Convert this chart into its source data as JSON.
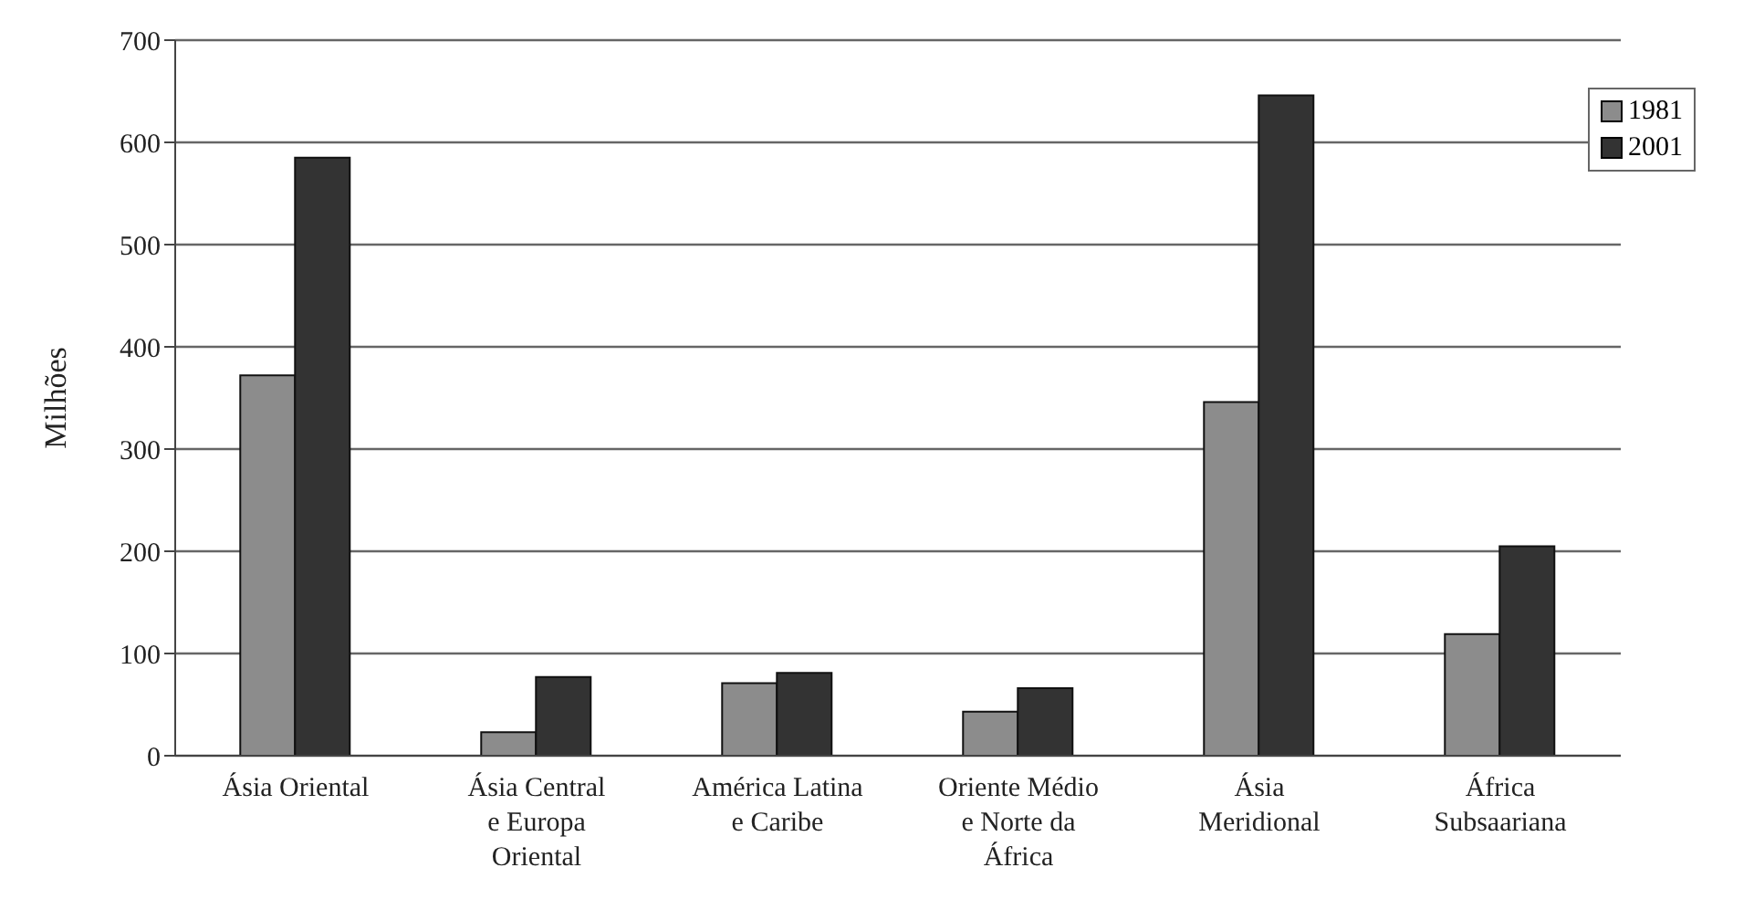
{
  "chart_data": {
    "type": "bar",
    "ylabel": "Milhões",
    "categories": [
      "Ásia Oriental",
      "Ásia Central e Europa Oriental",
      "América Latina e Caribe",
      "Oriente Médio e Norte da África",
      "Ásia Meridional",
      "África Subsaariana"
    ],
    "series": [
      {
        "name": "1981",
        "color": "#8c8c8c",
        "values": [
          372,
          23,
          71,
          43,
          346,
          119
        ]
      },
      {
        "name": "2001",
        "color": "#333333",
        "values": [
          585,
          77,
          81,
          66,
          646,
          205
        ]
      }
    ],
    "ylim": [
      0,
      700
    ],
    "yticks": [
      0,
      100,
      200,
      300,
      400,
      500,
      600,
      700
    ],
    "grid": "y",
    "legend": "top right"
  }
}
